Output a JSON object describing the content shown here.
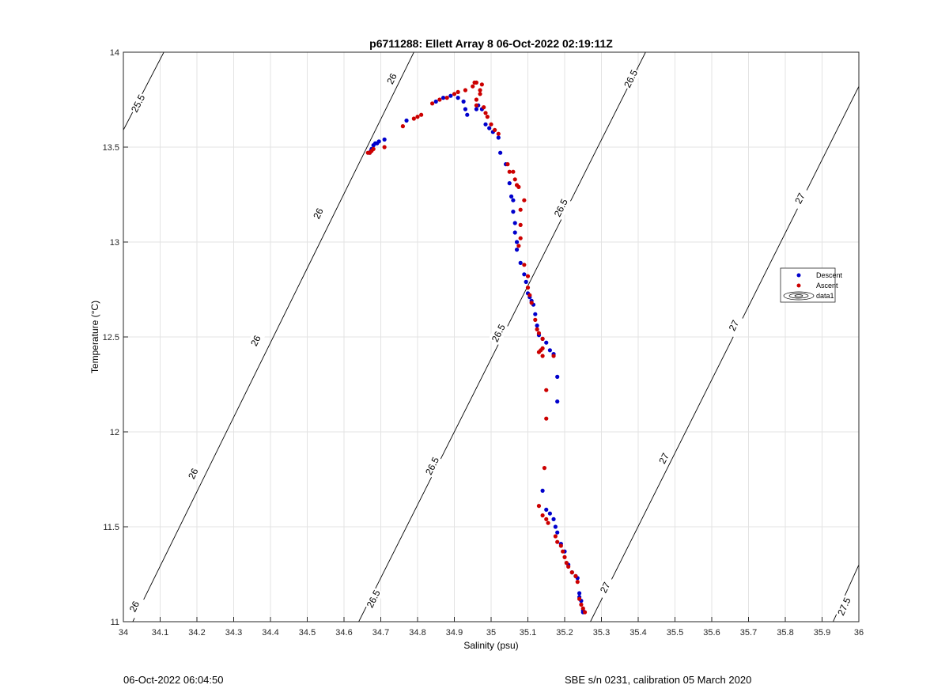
{
  "chart_data": {
    "type": "scatter",
    "title": "p6711288: Ellett Array 8 06-Oct-2022 02:19:11Z",
    "xlabel": "Salinity (psu)",
    "ylabel": "Temperature (°C)",
    "xlim": [
      34,
      36
    ],
    "ylim": [
      11,
      14
    ],
    "xticks": [
      34,
      34.1,
      34.2,
      34.3,
      34.4,
      34.5,
      34.6,
      34.7,
      34.8,
      34.9,
      35,
      35.1,
      35.2,
      35.3,
      35.4,
      35.5,
      35.6,
      35.7,
      35.8,
      35.9,
      36
    ],
    "xtick_labels": [
      "34",
      "34.1",
      "34.2",
      "34.3",
      "34.4",
      "34.5",
      "34.6",
      "34.7",
      "34.8",
      "34.9",
      "35",
      "35.1",
      "35.2",
      "35.3",
      "35.4",
      "35.5",
      "35.6",
      "35.7",
      "35.8",
      "35.9",
      "36"
    ],
    "yticks": [
      11,
      11.5,
      12,
      12.5,
      13,
      13.5,
      14
    ],
    "ytick_labels": [
      "11",
      "11.5",
      "12",
      "12.5",
      "13",
      "13.5",
      "14"
    ],
    "grid": true,
    "legend": {
      "placement": "right",
      "entries": [
        "Descent",
        "Ascent",
        "data1"
      ]
    },
    "series": [
      {
        "name": "Descent",
        "color": "#0000cc",
        "points": [
          [
            34.67,
            13.47
          ],
          [
            34.675,
            13.49
          ],
          [
            34.68,
            13.51
          ],
          [
            34.685,
            13.52
          ],
          [
            34.69,
            13.52
          ],
          [
            34.695,
            13.53
          ],
          [
            34.71,
            13.54
          ],
          [
            34.673,
            13.48
          ],
          [
            34.77,
            13.64
          ],
          [
            34.85,
            13.74
          ],
          [
            34.87,
            13.76
          ],
          [
            34.89,
            13.77
          ],
          [
            34.91,
            13.76
          ],
          [
            34.925,
            13.74
          ],
          [
            34.93,
            13.7
          ],
          [
            34.935,
            13.67
          ],
          [
            34.96,
            13.7
          ],
          [
            34.965,
            13.72
          ],
          [
            34.975,
            13.7
          ],
          [
            34.985,
            13.62
          ],
          [
            34.995,
            13.6
          ],
          [
            35.005,
            13.58
          ],
          [
            35.02,
            13.55
          ],
          [
            35.025,
            13.47
          ],
          [
            35.04,
            13.41
          ],
          [
            35.05,
            13.31
          ],
          [
            35.055,
            13.24
          ],
          [
            35.06,
            13.22
          ],
          [
            35.06,
            13.16
          ],
          [
            35.065,
            13.1
          ],
          [
            35.065,
            13.05
          ],
          [
            35.07,
            13.0
          ],
          [
            35.07,
            12.96
          ],
          [
            35.08,
            12.89
          ],
          [
            35.09,
            12.83
          ],
          [
            35.095,
            12.79
          ],
          [
            35.1,
            12.73
          ],
          [
            35.105,
            12.71
          ],
          [
            35.11,
            12.69
          ],
          [
            35.115,
            12.67
          ],
          [
            35.12,
            12.62
          ],
          [
            35.125,
            12.56
          ],
          [
            35.13,
            12.51
          ],
          [
            35.14,
            12.49
          ],
          [
            35.15,
            12.47
          ],
          [
            35.16,
            12.43
          ],
          [
            35.17,
            12.41
          ],
          [
            35.18,
            12.29
          ],
          [
            35.18,
            12.16
          ],
          [
            35.14,
            11.69
          ],
          [
            35.15,
            11.59
          ],
          [
            35.16,
            11.57
          ],
          [
            35.17,
            11.54
          ],
          [
            35.175,
            11.5
          ],
          [
            35.18,
            11.47
          ],
          [
            35.19,
            11.41
          ],
          [
            35.2,
            11.37
          ],
          [
            35.21,
            11.3
          ],
          [
            35.22,
            11.26
          ],
          [
            35.23,
            11.24
          ],
          [
            35.235,
            11.23
          ],
          [
            35.24,
            11.15
          ],
          [
            35.24,
            11.13
          ],
          [
            35.245,
            11.11
          ],
          [
            35.25,
            11.06
          ],
          [
            35.25,
            11.05
          ]
        ]
      },
      {
        "name": "Ascent",
        "color": "#cc0000",
        "points": [
          [
            34.665,
            13.47
          ],
          [
            34.67,
            13.47
          ],
          [
            34.675,
            13.48
          ],
          [
            34.68,
            13.49
          ],
          [
            34.71,
            13.5
          ],
          [
            34.76,
            13.61
          ],
          [
            34.79,
            13.65
          ],
          [
            34.8,
            13.66
          ],
          [
            34.81,
            13.67
          ],
          [
            34.84,
            13.73
          ],
          [
            34.86,
            13.75
          ],
          [
            34.88,
            13.76
          ],
          [
            34.9,
            13.78
          ],
          [
            34.91,
            13.79
          ],
          [
            34.93,
            13.8
          ],
          [
            34.95,
            13.82
          ],
          [
            34.955,
            13.84
          ],
          [
            34.96,
            13.84
          ],
          [
            34.97,
            13.8
          ],
          [
            34.975,
            13.83
          ],
          [
            34.97,
            13.78
          ],
          [
            34.96,
            13.75
          ],
          [
            34.96,
            13.72
          ],
          [
            34.98,
            13.71
          ],
          [
            34.985,
            13.68
          ],
          [
            34.99,
            13.66
          ],
          [
            35.0,
            13.62
          ],
          [
            35.01,
            13.59
          ],
          [
            35.02,
            13.57
          ],
          [
            35.045,
            13.41
          ],
          [
            35.05,
            13.37
          ],
          [
            35.06,
            13.37
          ],
          [
            35.065,
            13.33
          ],
          [
            35.07,
            13.3
          ],
          [
            35.075,
            13.29
          ],
          [
            35.09,
            13.22
          ],
          [
            35.08,
            13.17
          ],
          [
            35.08,
            13.09
          ],
          [
            35.08,
            13.02
          ],
          [
            35.075,
            12.98
          ],
          [
            35.09,
            12.88
          ],
          [
            35.1,
            12.82
          ],
          [
            35.1,
            12.76
          ],
          [
            35.105,
            12.72
          ],
          [
            35.11,
            12.68
          ],
          [
            35.12,
            12.59
          ],
          [
            35.125,
            12.54
          ],
          [
            35.13,
            12.52
          ],
          [
            35.14,
            12.49
          ],
          [
            35.14,
            12.44
          ],
          [
            35.135,
            12.43
          ],
          [
            35.13,
            12.42
          ],
          [
            35.14,
            12.4
          ],
          [
            35.17,
            12.4
          ],
          [
            35.15,
            12.22
          ],
          [
            35.15,
            12.07
          ],
          [
            35.145,
            11.81
          ],
          [
            35.13,
            11.61
          ],
          [
            35.14,
            11.56
          ],
          [
            35.15,
            11.54
          ],
          [
            35.155,
            11.52
          ],
          [
            35.175,
            11.45
          ],
          [
            35.18,
            11.42
          ],
          [
            35.19,
            11.4
          ],
          [
            35.195,
            11.37
          ],
          [
            35.2,
            11.34
          ],
          [
            35.205,
            11.31
          ],
          [
            35.21,
            11.29
          ],
          [
            35.22,
            11.26
          ],
          [
            35.23,
            11.24
          ],
          [
            35.235,
            11.21
          ],
          [
            35.24,
            11.12
          ],
          [
            35.245,
            11.09
          ],
          [
            35.25,
            11.07
          ],
          [
            35.255,
            11.05
          ]
        ]
      }
    ],
    "isopycnals": [
      {
        "label": "25.5",
        "from": [
          34.0,
          13.59
        ],
        "to": [
          34.11,
          14.0
        ],
        "labels_at": [
          [
            34.04,
            13.73
          ]
        ]
      },
      {
        "label": "26",
        "from": [
          34.0,
          10.9
        ],
        "to": [
          34.79,
          14.0
        ],
        "labels_at": [
          [
            34.03,
            11.08
          ],
          [
            34.19,
            11.78
          ],
          [
            34.36,
            12.48
          ],
          [
            34.53,
            13.15
          ],
          [
            34.73,
            13.86
          ]
        ]
      },
      {
        "label": "26.5",
        "from": [
          34.64,
          11.0
        ],
        "to": [
          35.42,
          14.0
        ],
        "labels_at": [
          [
            34.68,
            11.12
          ],
          [
            34.84,
            11.82
          ],
          [
            35.02,
            12.52
          ],
          [
            35.19,
            13.18
          ],
          [
            35.38,
            13.86
          ]
        ]
      },
      {
        "label": "27",
        "from": [
          35.27,
          11.0
        ],
        "to": [
          36.0,
          13.82
        ],
        "labels_at": [
          [
            35.31,
            11.18
          ],
          [
            35.47,
            11.86
          ],
          [
            35.66,
            12.56
          ],
          [
            35.84,
            13.23
          ]
        ]
      },
      {
        "label": "27.5",
        "from": [
          35.93,
          11.0
        ],
        "to": [
          36.0,
          11.3
        ],
        "labels_at": [
          [
            35.96,
            11.08
          ]
        ]
      }
    ]
  },
  "footer": {
    "left": "06-Oct-2022 06:04:50",
    "right": "SBE s/n 0231, calibration 05 March 2020"
  }
}
